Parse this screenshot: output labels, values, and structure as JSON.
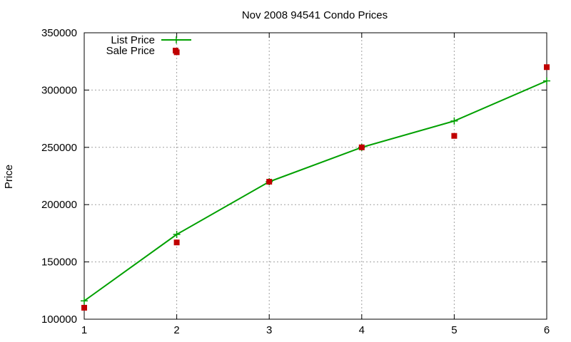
{
  "chart_data": {
    "type": "line",
    "title": "Nov 2008 94541 Condo Prices",
    "xlabel": "",
    "ylabel": "Price",
    "xlim": [
      1,
      6
    ],
    "ylim": [
      100000,
      350000
    ],
    "x_ticks": [
      "1",
      "2",
      "3",
      "4",
      "5",
      "6"
    ],
    "y_ticks": [
      "100000",
      "150000",
      "200000",
      "250000",
      "300000",
      "350000"
    ],
    "grid": true,
    "legend_position": "top-left",
    "x": [
      1,
      2,
      3,
      4,
      5,
      6
    ],
    "series": [
      {
        "name": "List Price",
        "style": "line+cross",
        "color": "#00a000",
        "values": [
          116000,
          174000,
          220000,
          250000,
          273000,
          308000
        ]
      },
      {
        "name": "Sale Price",
        "style": "square",
        "color": "#c00000",
        "values": [
          110000,
          167000,
          220000,
          250000,
          260000,
          320000
        ]
      }
    ]
  },
  "outlier": {
    "series": "Sale Price",
    "x": 2,
    "y": 333000
  }
}
